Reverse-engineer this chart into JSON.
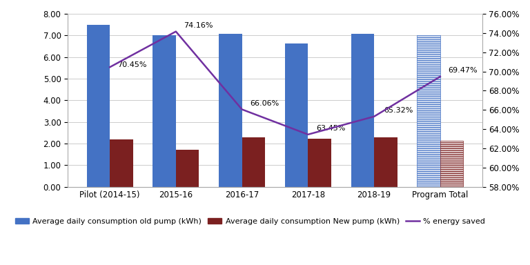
{
  "categories": [
    "Pilot (2014-15)",
    "2015-16",
    "2016-17",
    "2017-18",
    "2018-19",
    "Program Total"
  ],
  "old_pump": [
    7.48,
    7.02,
    7.09,
    6.63,
    7.09,
    7.0
  ],
  "new_pump": [
    2.21,
    1.72,
    2.3,
    2.23,
    2.28,
    2.14
  ],
  "pct_saved": [
    70.45,
    74.16,
    66.06,
    63.45,
    65.32,
    69.47
  ],
  "pct_labels": [
    "70.45%",
    "74.16%",
    "66.06%",
    "63.45%",
    "65.32%",
    "69.47%"
  ],
  "ylim_left": [
    0.0,
    8.0
  ],
  "ylim_right": [
    58.0,
    76.0
  ],
  "yticks_left": [
    0.0,
    1.0,
    2.0,
    3.0,
    4.0,
    5.0,
    6.0,
    7.0,
    8.0
  ],
  "yticks_right": [
    58.0,
    60.0,
    62.0,
    64.0,
    66.0,
    68.0,
    70.0,
    72.0,
    74.0,
    76.0
  ],
  "bar_width": 0.35,
  "color_old": "#4472C4",
  "color_new": "#7B2020",
  "color_line": "#7030A0",
  "color_bg": "#FFFFFF",
  "legend_labels": [
    "Average daily consumption old pump (kWh)",
    "Average daily consumption New pump (kWh)",
    "% energy saved"
  ],
  "label_offsets_x": [
    0.12,
    0.12,
    0.12,
    0.12,
    0.12,
    0.12
  ],
  "label_offsets_y": [
    0.0,
    0.12,
    0.12,
    0.12,
    0.12,
    0.12
  ],
  "figsize": [
    7.68,
    3.84
  ],
  "dpi": 100
}
